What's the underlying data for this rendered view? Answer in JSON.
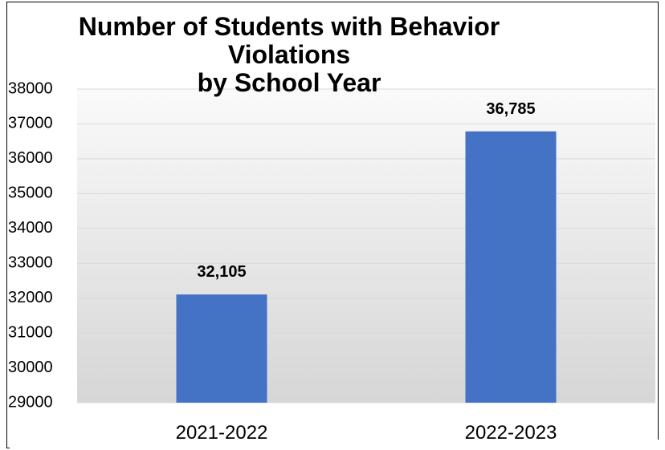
{
  "chart_data": {
    "type": "bar",
    "title_lines": [
      "Number of Students with Behavior",
      "Violations",
      "by School Year"
    ],
    "categories": [
      "2021-2022",
      "2022-2023"
    ],
    "values": [
      32105,
      36785
    ],
    "data_labels": [
      "32,105",
      "36,785"
    ],
    "ylim": [
      29000,
      38000
    ],
    "yticks": [
      "29000",
      "30000",
      "31000",
      "32000",
      "33000",
      "34000",
      "35000",
      "36000",
      "37000",
      "38000"
    ],
    "grid": true,
    "legend": "none",
    "colors": {
      "bar": "#4472C4",
      "plot_background_top": "#FAFAFA",
      "plot_background_bottom": "#D6D6D6",
      "gridline": "#D9D9D9"
    }
  }
}
